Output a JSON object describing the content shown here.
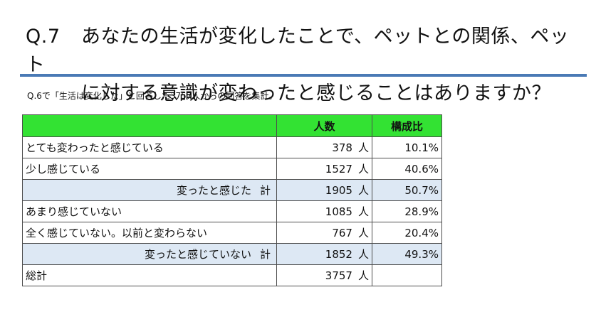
{
  "title": {
    "qno": "Q.7",
    "line1": "あなたの生活が変化したことで、ペットとの関係、ペット",
    "line2": "に対する意識が変わったと感じることはありますか？"
  },
  "note": "Q.6で「生活は変化した」と回答した3757人からの回答を集計。",
  "table": {
    "headers": [
      "",
      "人数",
      "構成比"
    ],
    "unit": "人",
    "rows": [
      {
        "label": "とても変わったと感じている",
        "count": "378",
        "ratio": "10.1%"
      },
      {
        "label": "少し感じている",
        "count": "1527",
        "ratio": "40.6%"
      },
      {
        "label": "変ったと感じた",
        "suffix": "計",
        "count": "1905",
        "ratio": "50.7%"
      },
      {
        "label": "あまり感じていない",
        "count": "1085",
        "ratio": "28.9%"
      },
      {
        "label": "全く感じていない。以前と変わらない",
        "count": "767",
        "ratio": "20.4%"
      },
      {
        "label": "変ったと感じていない",
        "suffix": "計",
        "count": "1852",
        "ratio": "49.3%"
      },
      {
        "label": "総計",
        "count": "3757",
        "ratio": ""
      }
    ]
  },
  "colors": {
    "header_bg": "#33e233",
    "subtotal_bg": "#dde8f4",
    "rule": "#4a7ab5"
  }
}
